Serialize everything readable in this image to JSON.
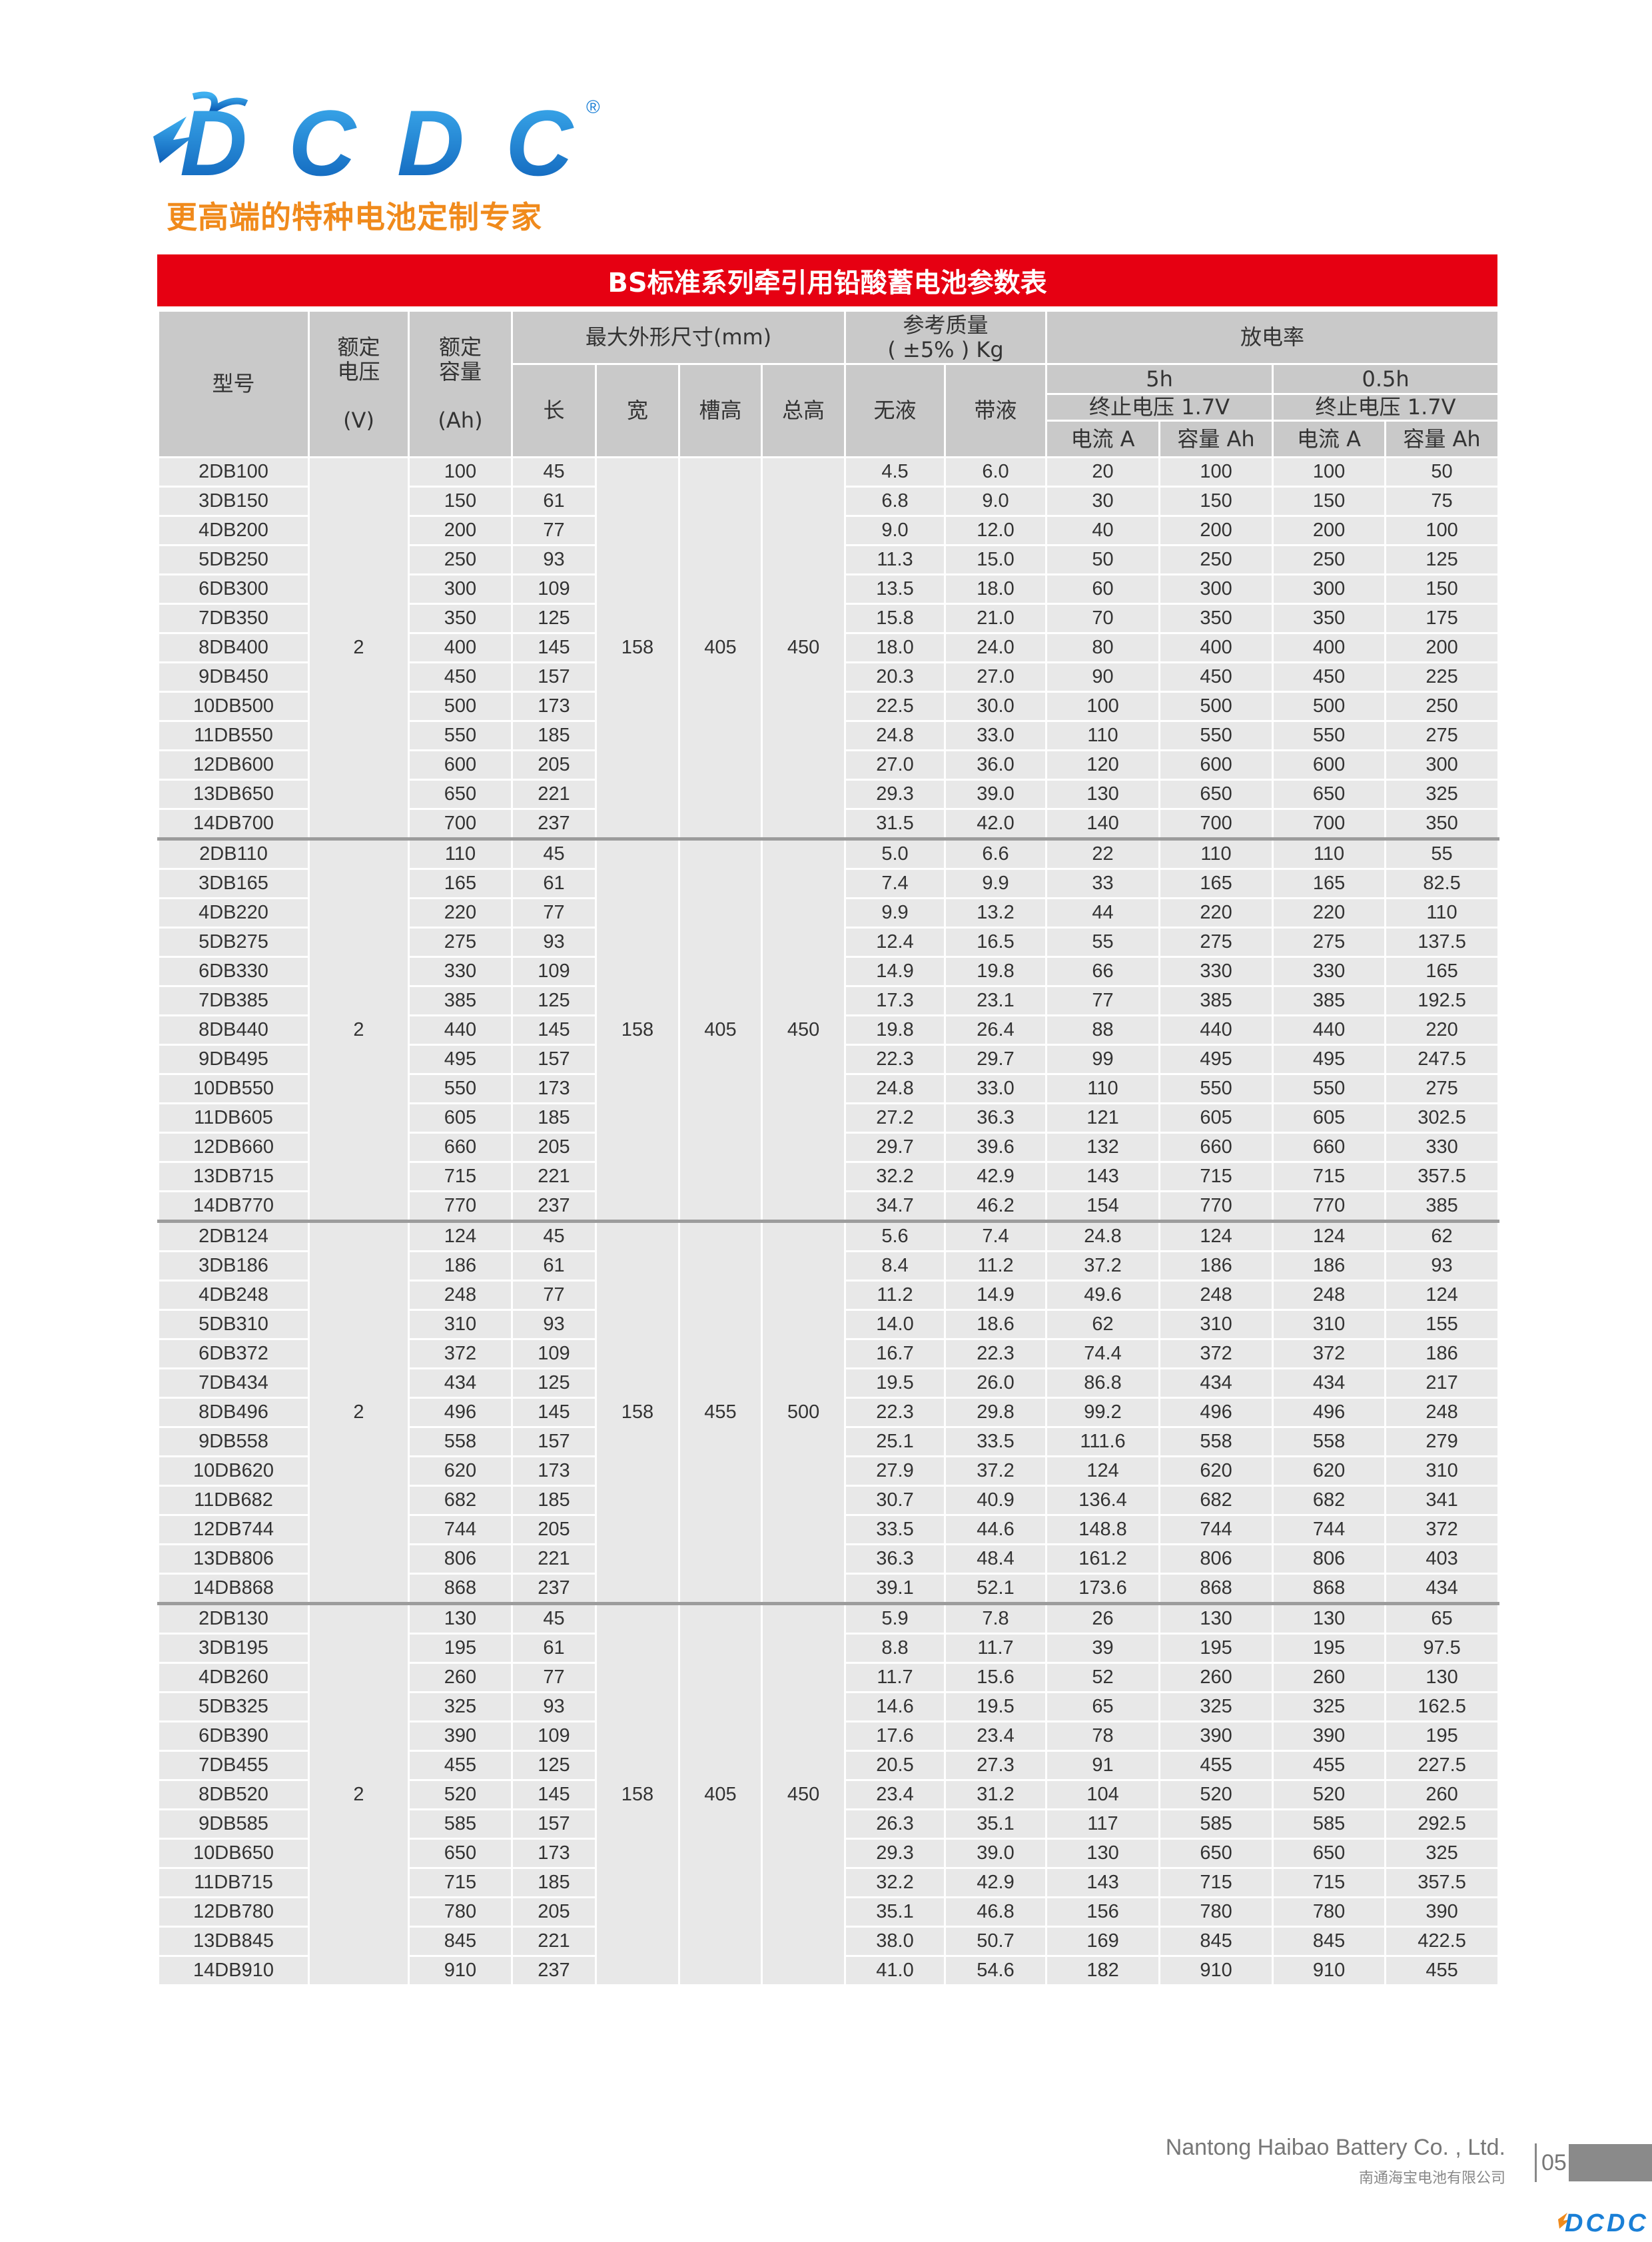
{
  "brand": {
    "name": "DCDC",
    "registered": "®",
    "tagline": "更高端的特种电池定制专家",
    "blue": "#1a7fd6",
    "orange": "#f08a1c"
  },
  "title": "BS标准系列牵引用铅酸蓄电池参数表",
  "title_color": "#e60012",
  "headers": {
    "model": "型号",
    "voltage_1": "额定",
    "voltage_2": "电压",
    "voltage_unit": "(V)",
    "capacity_1": "额定",
    "capacity_2": "容量",
    "capacity_unit": "(Ah)",
    "dimensions": "最大外形尺寸(mm)",
    "length": "长",
    "width": "宽",
    "slot_height": "槽高",
    "total_height": "总高",
    "weight_1": "参考质量",
    "weight_2": "( ±5% ) Kg",
    "dry": "无液",
    "wet": "带液",
    "discharge": "放电率",
    "rate_5h": "5h",
    "rate_05h": "0.5h",
    "cutoff_5h": "终止电压 1.7V",
    "cutoff_05h": "终止电压 1.7V",
    "current_5h": "电流 A",
    "cap_5h": "容量 Ah",
    "current_05h": "电流 A",
    "cap_05h": "容量 Ah"
  },
  "groups": [
    {
      "voltage": "2",
      "width": "158",
      "slot_height": "405",
      "total_height": "450",
      "rows": [
        [
          "2DB100",
          "100",
          "45",
          "4.5",
          "6.0",
          "20",
          "100",
          "100",
          "50"
        ],
        [
          "3DB150",
          "150",
          "61",
          "6.8",
          "9.0",
          "30",
          "150",
          "150",
          "75"
        ],
        [
          "4DB200",
          "200",
          "77",
          "9.0",
          "12.0",
          "40",
          "200",
          "200",
          "100"
        ],
        [
          "5DB250",
          "250",
          "93",
          "11.3",
          "15.0",
          "50",
          "250",
          "250",
          "125"
        ],
        [
          "6DB300",
          "300",
          "109",
          "13.5",
          "18.0",
          "60",
          "300",
          "300",
          "150"
        ],
        [
          "7DB350",
          "350",
          "125",
          "15.8",
          "21.0",
          "70",
          "350",
          "350",
          "175"
        ],
        [
          "8DB400",
          "400",
          "145",
          "18.0",
          "24.0",
          "80",
          "400",
          "400",
          "200"
        ],
        [
          "9DB450",
          "450",
          "157",
          "20.3",
          "27.0",
          "90",
          "450",
          "450",
          "225"
        ],
        [
          "10DB500",
          "500",
          "173",
          "22.5",
          "30.0",
          "100",
          "500",
          "500",
          "250"
        ],
        [
          "11DB550",
          "550",
          "185",
          "24.8",
          "33.0",
          "110",
          "550",
          "550",
          "275"
        ],
        [
          "12DB600",
          "600",
          "205",
          "27.0",
          "36.0",
          "120",
          "600",
          "600",
          "300"
        ],
        [
          "13DB650",
          "650",
          "221",
          "29.3",
          "39.0",
          "130",
          "650",
          "650",
          "325"
        ],
        [
          "14DB700",
          "700",
          "237",
          "31.5",
          "42.0",
          "140",
          "700",
          "700",
          "350"
        ]
      ]
    },
    {
      "voltage": "2",
      "width": "158",
      "slot_height": "405",
      "total_height": "450",
      "rows": [
        [
          "2DB110",
          "110",
          "45",
          "5.0",
          "6.6",
          "22",
          "110",
          "110",
          "55"
        ],
        [
          "3DB165",
          "165",
          "61",
          "7.4",
          "9.9",
          "33",
          "165",
          "165",
          "82.5"
        ],
        [
          "4DB220",
          "220",
          "77",
          "9.9",
          "13.2",
          "44",
          "220",
          "220",
          "110"
        ],
        [
          "5DB275",
          "275",
          "93",
          "12.4",
          "16.5",
          "55",
          "275",
          "275",
          "137.5"
        ],
        [
          "6DB330",
          "330",
          "109",
          "14.9",
          "19.8",
          "66",
          "330",
          "330",
          "165"
        ],
        [
          "7DB385",
          "385",
          "125",
          "17.3",
          "23.1",
          "77",
          "385",
          "385",
          "192.5"
        ],
        [
          "8DB440",
          "440",
          "145",
          "19.8",
          "26.4",
          "88",
          "440",
          "440",
          "220"
        ],
        [
          "9DB495",
          "495",
          "157",
          "22.3",
          "29.7",
          "99",
          "495",
          "495",
          "247.5"
        ],
        [
          "10DB550",
          "550",
          "173",
          "24.8",
          "33.0",
          "110",
          "550",
          "550",
          "275"
        ],
        [
          "11DB605",
          "605",
          "185",
          "27.2",
          "36.3",
          "121",
          "605",
          "605",
          "302.5"
        ],
        [
          "12DB660",
          "660",
          "205",
          "29.7",
          "39.6",
          "132",
          "660",
          "660",
          "330"
        ],
        [
          "13DB715",
          "715",
          "221",
          "32.2",
          "42.9",
          "143",
          "715",
          "715",
          "357.5"
        ],
        [
          "14DB770",
          "770",
          "237",
          "34.7",
          "46.2",
          "154",
          "770",
          "770",
          "385"
        ]
      ]
    },
    {
      "voltage": "2",
      "width": "158",
      "slot_height": "455",
      "total_height": "500",
      "rows": [
        [
          "2DB124",
          "124",
          "45",
          "5.6",
          "7.4",
          "24.8",
          "124",
          "124",
          "62"
        ],
        [
          "3DB186",
          "186",
          "61",
          "8.4",
          "11.2",
          "37.2",
          "186",
          "186",
          "93"
        ],
        [
          "4DB248",
          "248",
          "77",
          "11.2",
          "14.9",
          "49.6",
          "248",
          "248",
          "124"
        ],
        [
          "5DB310",
          "310",
          "93",
          "14.0",
          "18.6",
          "62",
          "310",
          "310",
          "155"
        ],
        [
          "6DB372",
          "372",
          "109",
          "16.7",
          "22.3",
          "74.4",
          "372",
          "372",
          "186"
        ],
        [
          "7DB434",
          "434",
          "125",
          "19.5",
          "26.0",
          "86.8",
          "434",
          "434",
          "217"
        ],
        [
          "8DB496",
          "496",
          "145",
          "22.3",
          "29.8",
          "99.2",
          "496",
          "496",
          "248"
        ],
        [
          "9DB558",
          "558",
          "157",
          "25.1",
          "33.5",
          "111.6",
          "558",
          "558",
          "279"
        ],
        [
          "10DB620",
          "620",
          "173",
          "27.9",
          "37.2",
          "124",
          "620",
          "620",
          "310"
        ],
        [
          "11DB682",
          "682",
          "185",
          "30.7",
          "40.9",
          "136.4",
          "682",
          "682",
          "341"
        ],
        [
          "12DB744",
          "744",
          "205",
          "33.5",
          "44.6",
          "148.8",
          "744",
          "744",
          "372"
        ],
        [
          "13DB806",
          "806",
          "221",
          "36.3",
          "48.4",
          "161.2",
          "806",
          "806",
          "403"
        ],
        [
          "14DB868",
          "868",
          "237",
          "39.1",
          "52.1",
          "173.6",
          "868",
          "868",
          "434"
        ]
      ]
    },
    {
      "voltage": "2",
      "width": "158",
      "slot_height": "405",
      "total_height": "450",
      "rows": [
        [
          "2DB130",
          "130",
          "45",
          "5.9",
          "7.8",
          "26",
          "130",
          "130",
          "65"
        ],
        [
          "3DB195",
          "195",
          "61",
          "8.8",
          "11.7",
          "39",
          "195",
          "195",
          "97.5"
        ],
        [
          "4DB260",
          "260",
          "77",
          "11.7",
          "15.6",
          "52",
          "260",
          "260",
          "130"
        ],
        [
          "5DB325",
          "325",
          "93",
          "14.6",
          "19.5",
          "65",
          "325",
          "325",
          "162.5"
        ],
        [
          "6DB390",
          "390",
          "109",
          "17.6",
          "23.4",
          "78",
          "390",
          "390",
          "195"
        ],
        [
          "7DB455",
          "455",
          "125",
          "20.5",
          "27.3",
          "91",
          "455",
          "455",
          "227.5"
        ],
        [
          "8DB520",
          "520",
          "145",
          "23.4",
          "31.2",
          "104",
          "520",
          "520",
          "260"
        ],
        [
          "9DB585",
          "585",
          "157",
          "26.3",
          "35.1",
          "117",
          "585",
          "585",
          "292.5"
        ],
        [
          "10DB650",
          "650",
          "173",
          "29.3",
          "39.0",
          "130",
          "650",
          "650",
          "325"
        ],
        [
          "11DB715",
          "715",
          "185",
          "32.2",
          "42.9",
          "143",
          "715",
          "715",
          "357.5"
        ],
        [
          "12DB780",
          "780",
          "205",
          "35.1",
          "46.8",
          "156",
          "780",
          "780",
          "390"
        ],
        [
          "13DB845",
          "845",
          "221",
          "38.0",
          "50.7",
          "169",
          "845",
          "845",
          "422.5"
        ],
        [
          "14DB910",
          "910",
          "237",
          "41.0",
          "54.6",
          "182",
          "910",
          "910",
          "455"
        ]
      ]
    }
  ],
  "footer": {
    "company_en": "Nantong Haibao Battery Co. , Ltd.",
    "company_cn": "南通海宝电池有限公司",
    "page": "05"
  }
}
